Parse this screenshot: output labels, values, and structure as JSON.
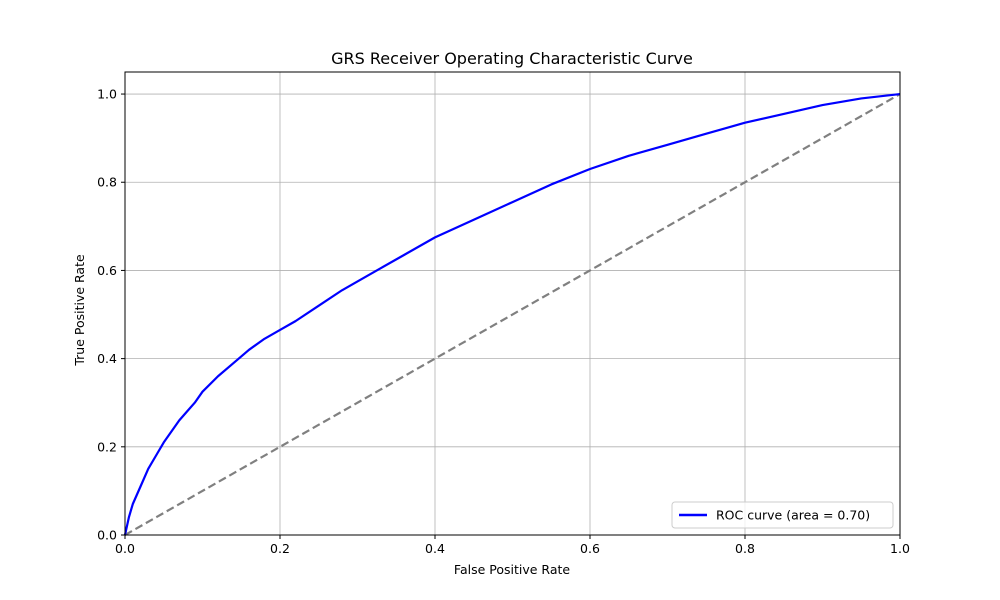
{
  "chart_data": {
    "type": "line",
    "title": "GRS Receiver Operating Characteristic Curve",
    "xlabel": "False Positive Rate",
    "ylabel": "True Positive Rate",
    "xlim": [
      0.0,
      1.0
    ],
    "ylim": [
      0.0,
      1.05
    ],
    "x_ticks": [
      0.0,
      0.2,
      0.4,
      0.6,
      0.8,
      1.0
    ],
    "x_tick_labels": [
      "0.0",
      "0.2",
      "0.4",
      "0.6",
      "0.8",
      "1.0"
    ],
    "y_ticks": [
      0.0,
      0.2,
      0.4,
      0.6,
      0.8,
      1.0
    ],
    "y_tick_labels": [
      "0.0",
      "0.2",
      "0.4",
      "0.6",
      "0.8",
      "1.0"
    ],
    "grid": true,
    "legend_position": "bottom-right",
    "series": [
      {
        "name": "ROC curve (area = 0.70)",
        "color": "#0000ff",
        "style": "solid",
        "x": [
          0.0,
          0.005,
          0.01,
          0.02,
          0.03,
          0.04,
          0.05,
          0.06,
          0.07,
          0.08,
          0.09,
          0.1,
          0.12,
          0.14,
          0.16,
          0.18,
          0.2,
          0.22,
          0.25,
          0.28,
          0.3,
          0.33,
          0.36,
          0.4,
          0.45,
          0.5,
          0.55,
          0.6,
          0.65,
          0.7,
          0.75,
          0.8,
          0.85,
          0.9,
          0.95,
          1.0
        ],
        "y": [
          0.0,
          0.04,
          0.07,
          0.11,
          0.15,
          0.18,
          0.21,
          0.235,
          0.26,
          0.28,
          0.3,
          0.325,
          0.36,
          0.39,
          0.42,
          0.445,
          0.465,
          0.485,
          0.52,
          0.555,
          0.575,
          0.605,
          0.635,
          0.675,
          0.715,
          0.755,
          0.795,
          0.83,
          0.86,
          0.885,
          0.91,
          0.935,
          0.955,
          0.975,
          0.99,
          1.0
        ]
      },
      {
        "name": "",
        "color": "#808080",
        "style": "dashed",
        "x": [
          0.0,
          1.0
        ],
        "y": [
          0.0,
          1.0
        ]
      }
    ]
  }
}
